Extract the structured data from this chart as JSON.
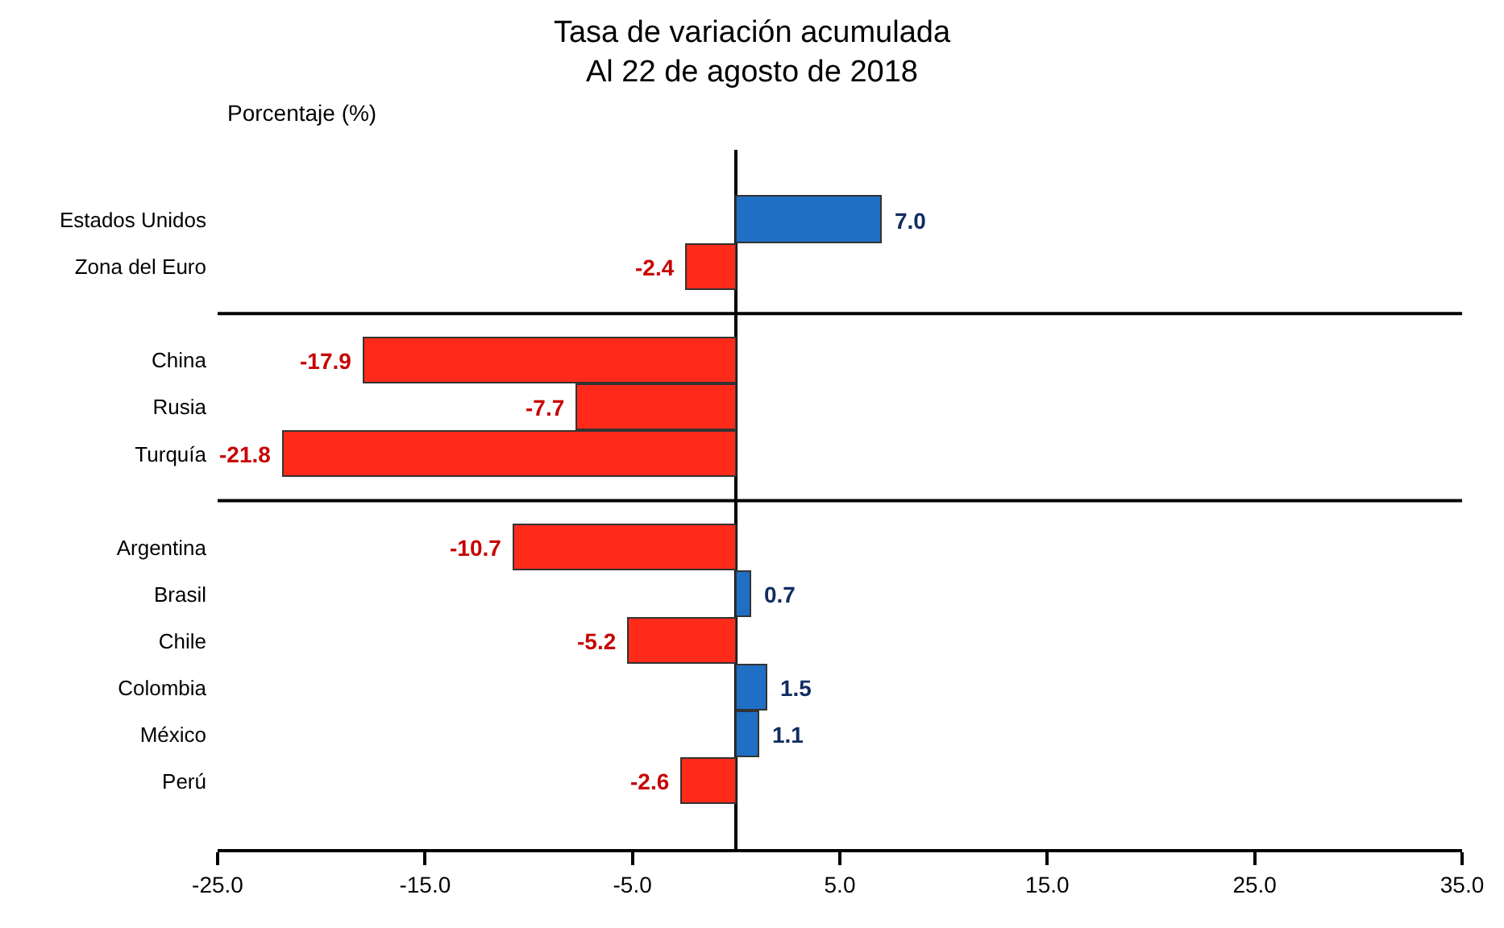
{
  "chart_data": {
    "type": "bar",
    "orientation": "horizontal",
    "title": "Tasa de variación acumulada\nAl 22 de agosto de 2018",
    "ylabel": "Porcentaje (%)",
    "categories": [
      "Estados Unidos",
      "Zona del Euro",
      null,
      "China",
      "Rusia",
      "Turquía",
      null,
      "Argentina",
      "Brasil",
      "Chile",
      "Colombia",
      "México",
      "Perú"
    ],
    "values": [
      7.0,
      -2.4,
      null,
      -17.9,
      -7.7,
      -21.8,
      null,
      -10.7,
      0.7,
      -5.2,
      1.5,
      1.1,
      -2.6
    ],
    "value_labels": [
      "7.0",
      "-2.4",
      null,
      "-17.9",
      "-7.7",
      "-21.8",
      null,
      "-10.7",
      "0.7",
      "-5.2",
      "1.5",
      "1.1",
      "-2.6"
    ],
    "colors": [
      "#1f6fc5",
      "#ff2a1a",
      null,
      "#ff2a1a",
      "#ff2a1a",
      "#ff2a1a",
      null,
      "#ff2a1a",
      "#1f6fc5",
      "#ff2a1a",
      "#1f6fc5",
      "#1f6fc5",
      "#ff2a1a"
    ],
    "xlim": [
      -25,
      35
    ],
    "xticks": [
      {
        "value": -25,
        "label": "-25.0"
      },
      {
        "value": -15,
        "label": "-15.0"
      },
      {
        "value": -5,
        "label": "-5.0"
      },
      {
        "value": 5,
        "label": "5.0"
      },
      {
        "value": 15,
        "label": "15.0"
      },
      {
        "value": 25,
        "label": "25.0"
      },
      {
        "value": 35,
        "label": "35.0"
      }
    ]
  }
}
